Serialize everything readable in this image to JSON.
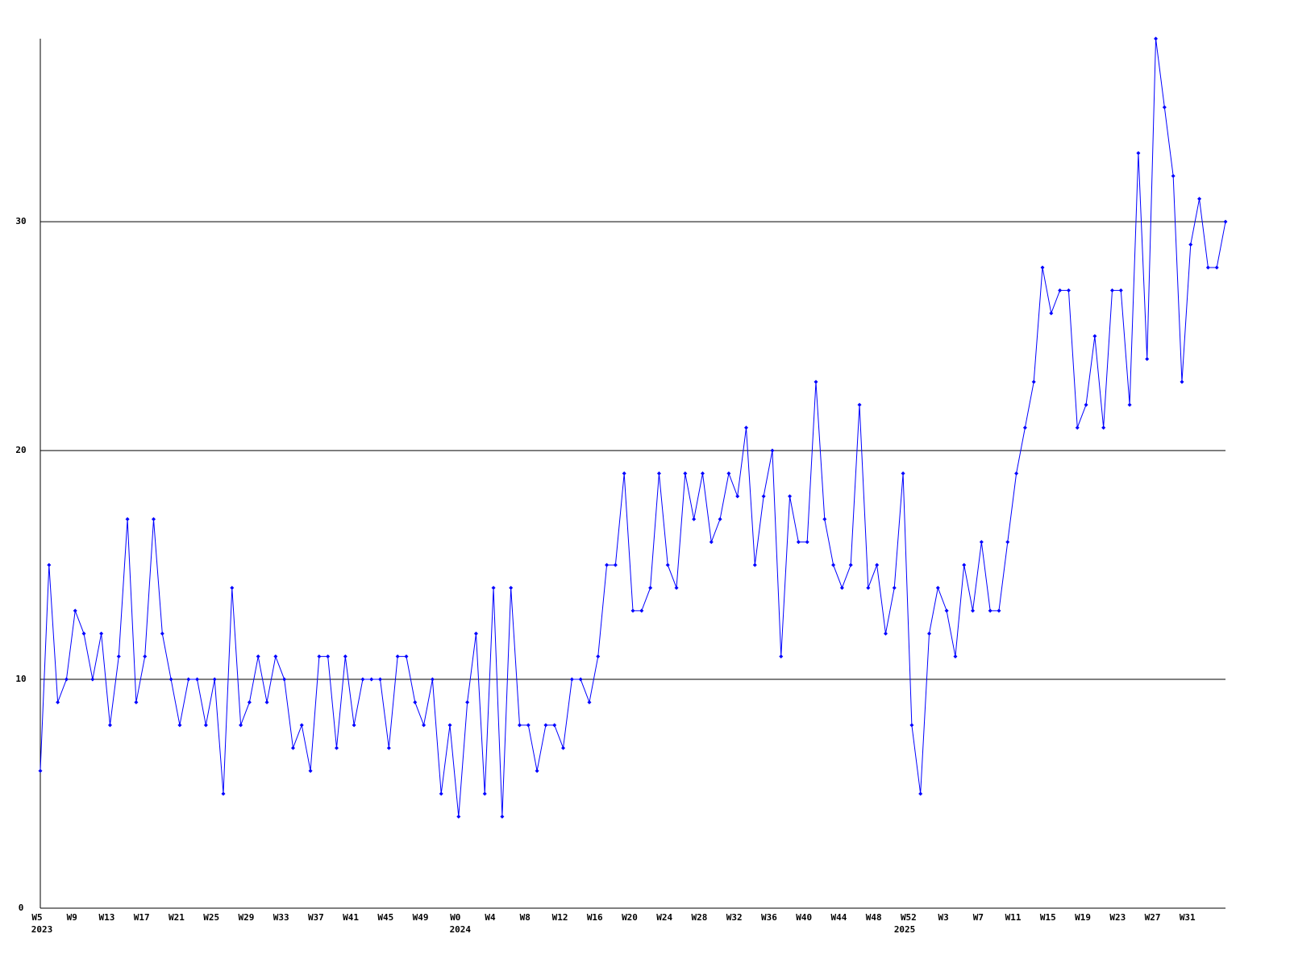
{
  "chart_data": {
    "type": "line",
    "categories": [
      "W5",
      null,
      null,
      null,
      "W9",
      null,
      null,
      null,
      "W13",
      null,
      null,
      null,
      "W17",
      null,
      null,
      null,
      "W21",
      null,
      null,
      null,
      "W25",
      null,
      null,
      null,
      "W29",
      null,
      null,
      null,
      "W33",
      null,
      null,
      null,
      "W37",
      null,
      null,
      null,
      "W41",
      null,
      null,
      null,
      "W45",
      null,
      null,
      null,
      "W49",
      null,
      null,
      null,
      "W0",
      null,
      null,
      null,
      "W4",
      null,
      null,
      null,
      "W8",
      null,
      null,
      null,
      "W12",
      null,
      null,
      null,
      "W16",
      null,
      null,
      null,
      "W20",
      null,
      null,
      null,
      "W24",
      null,
      null,
      null,
      "W28",
      null,
      null,
      null,
      "W32",
      null,
      null,
      null,
      "W36",
      null,
      null,
      null,
      "W40",
      null,
      null,
      null,
      "W44",
      null,
      null,
      null,
      "W48",
      null,
      null,
      null,
      "W52",
      null,
      null,
      null,
      "W3",
      null,
      null,
      null,
      "W7",
      null,
      null,
      null,
      "W11",
      null,
      null,
      null,
      "W15",
      null,
      null,
      null,
      "W19",
      null,
      null,
      null,
      "W23",
      null,
      null,
      null,
      "W27",
      null,
      null,
      null,
      "W31",
      null,
      null,
      null,
      null
    ],
    "year_labels": [
      "2023",
      null,
      null,
      null,
      null,
      null,
      null,
      null,
      null,
      null,
      null,
      null,
      null,
      null,
      null,
      null,
      null,
      null,
      null,
      null,
      null,
      null,
      null,
      null,
      null,
      null,
      null,
      null,
      null,
      null,
      null,
      null,
      null,
      null,
      null,
      null,
      null,
      null,
      null,
      null,
      null,
      null,
      null,
      null,
      null,
      null,
      null,
      null,
      "2024",
      null,
      null,
      null,
      null,
      null,
      null,
      null,
      null,
      null,
      null,
      null,
      null,
      null,
      null,
      null,
      null,
      null,
      null,
      null,
      null,
      null,
      null,
      null,
      null,
      null,
      null,
      null,
      null,
      null,
      null,
      null,
      null,
      null,
      null,
      null,
      null,
      null,
      null,
      null,
      null,
      null,
      null,
      null,
      null,
      null,
      null,
      null,
      null,
      null,
      null,
      "2025",
      null,
      null,
      null,
      null,
      null,
      null,
      null,
      null,
      null,
      null,
      null,
      null,
      null,
      null,
      null,
      null,
      null,
      null,
      null,
      null,
      null,
      null,
      null,
      null,
      null,
      null,
      null,
      null,
      null,
      null,
      null,
      null,
      null,
      null
    ],
    "values": [
      6,
      15,
      9,
      10,
      13,
      12,
      10,
      12,
      8,
      11,
      17,
      9,
      11,
      17,
      12,
      10,
      8,
      10,
      10,
      8,
      10,
      5,
      14,
      8,
      9,
      11,
      9,
      11,
      10,
      7,
      8,
      6,
      11,
      11,
      7,
      11,
      8,
      10,
      10,
      10,
      7,
      11,
      11,
      9,
      8,
      10,
      5,
      8,
      4,
      9,
      12,
      5,
      14,
      4,
      14,
      8,
      8,
      6,
      8,
      8,
      7,
      10,
      10,
      9,
      11,
      15,
      15,
      19,
      13,
      13,
      14,
      19,
      15,
      14,
      19,
      17,
      19,
      16,
      17,
      19,
      18,
      21,
      15,
      18,
      20,
      11,
      18,
      16,
      16,
      23,
      17,
      15,
      14,
      15,
      22,
      14,
      15,
      12,
      14,
      19,
      8,
      5,
      12,
      14,
      13,
      11,
      15,
      13,
      16,
      13,
      13,
      16,
      19,
      21,
      23,
      28,
      26,
      27,
      27,
      21,
      22,
      25,
      21,
      27,
      27,
      22,
      33,
      24,
      38,
      35,
      32,
      23,
      29,
      31,
      28,
      28,
      30
    ],
    "color": "#0000ff",
    "ylim": [
      0,
      38
    ],
    "yticks": [
      0,
      10,
      20,
      30
    ],
    "grid": true
  }
}
